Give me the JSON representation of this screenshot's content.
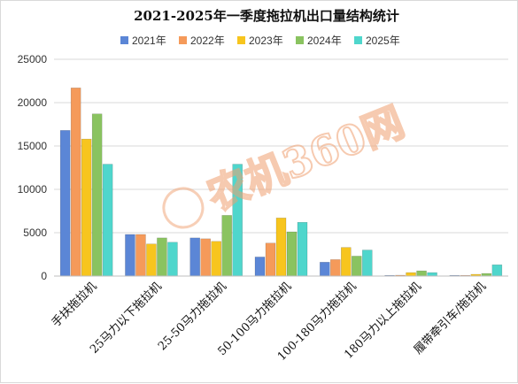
{
  "chart_data": {
    "type": "bar",
    "title": "2021-2025年一季度拖拉机出口量结构统计",
    "categories": [
      "手扶拖拉机",
      "25马力以下拖拉机",
      "25-50马力拖拉机",
      "50-100马力拖拉机",
      "100-180马力拖拉机",
      "180马力以上拖拉机",
      "履带牵引车/拖拉机"
    ],
    "series": [
      {
        "name": "2021年",
        "color": "#5b86d6",
        "values": [
          16800,
          4800,
          4400,
          2200,
          1600,
          50,
          50
        ]
      },
      {
        "name": "2022年",
        "color": "#f59a5a",
        "values": [
          21700,
          4800,
          4300,
          3800,
          1900,
          100,
          50
        ]
      },
      {
        "name": "2023年",
        "color": "#f7c51e",
        "values": [
          15800,
          3700,
          4000,
          6700,
          3300,
          400,
          200
        ]
      },
      {
        "name": "2024年",
        "color": "#8ac360",
        "values": [
          18700,
          4400,
          7000,
          5100,
          2300,
          600,
          300
        ]
      },
      {
        "name": "2025年",
        "color": "#4fd6cc",
        "values": [
          12900,
          3900,
          12900,
          6200,
          3000,
          400,
          1300
        ]
      }
    ],
    "ylim": [
      0,
      25000
    ],
    "yticks": [
      "0",
      "5000",
      "10000",
      "15000",
      "20000",
      "25000"
    ],
    "legend_position": "top",
    "grid": true
  },
  "watermark": "农机360网"
}
